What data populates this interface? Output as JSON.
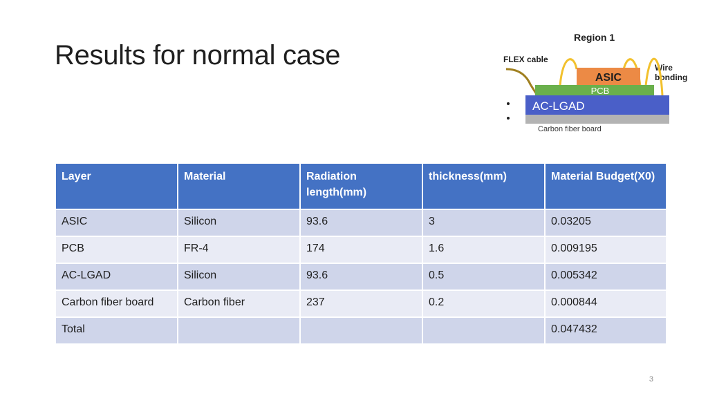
{
  "slide": {
    "title": "Results for normal case",
    "page_number": "3"
  },
  "diagram": {
    "region_label": "Region 1",
    "flex_label": "FLEX cable",
    "wire_label_1": "Wire",
    "wire_label_2": "bonding",
    "asic_label": "ASIC",
    "pcb_label": "PCB",
    "aclgad_label": "AC-LGAD",
    "carbon_label": "Carbon fiber board",
    "colors": {
      "asic": "#ec8a45",
      "pcb": "#6ab04c",
      "aclgad": "#4a5fc8",
      "carbon": "#b3b3b3",
      "wire": "#f2c12e",
      "cable": "#a08020"
    }
  },
  "table": {
    "headers": [
      "Layer",
      "Material",
      "Radiation length(mm)",
      "thickness(mm)",
      "Material Budget(X0)"
    ],
    "rows": [
      [
        "ASIC",
        "Silicon",
        "93.6",
        "3",
        "0.03205"
      ],
      [
        "PCB",
        "FR-4",
        "174",
        "1.6",
        "0.009195"
      ],
      [
        "AC-LGAD",
        "Silicon",
        "93.6",
        "0.5",
        "0.005342"
      ],
      [
        "Carbon fiber board",
        "Carbon fiber",
        "237",
        "0.2",
        "0.000844"
      ],
      [
        "Total",
        "",
        "",
        "",
        "0.047432"
      ]
    ]
  }
}
